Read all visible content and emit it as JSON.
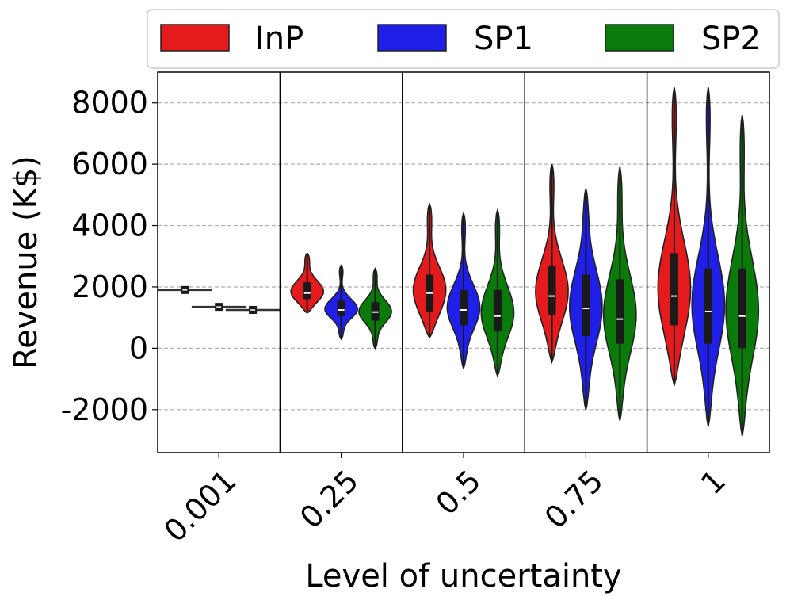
{
  "chart_data": {
    "type": "violin",
    "xlabel": "Level of uncertainty",
    "ylabel": "Revenue (K$)",
    "ylim": [
      -3400,
      9000
    ],
    "yticks": [
      -2000,
      0,
      2000,
      4000,
      6000,
      8000
    ],
    "ytick_labels": [
      "-2000",
      "0",
      "2000",
      "4000",
      "6000",
      "8000"
    ],
    "grid": "horizontal-dashed",
    "legend_position": "top",
    "categories": [
      "0.001",
      "0.25",
      "0.5",
      "0.75",
      "1"
    ],
    "series": [
      {
        "name": "InP",
        "color": "#e41a1c",
        "stats": [
          {
            "min": 1840,
            "q1": 1870,
            "median": 1900,
            "q3": 1930,
            "max": 1960
          },
          {
            "min": 1150,
            "q1": 1600,
            "median": 1800,
            "q3": 2150,
            "max": 3100
          },
          {
            "min": 350,
            "q1": 1200,
            "median": 1800,
            "q3": 2400,
            "max": 4700
          },
          {
            "min": -450,
            "q1": 1100,
            "median": 1700,
            "q3": 2700,
            "max": 6000
          },
          {
            "min": -1200,
            "q1": 750,
            "median": 1700,
            "q3": 3100,
            "max": 8500
          }
        ]
      },
      {
        "name": "SP1",
        "color": "#1f1fe8",
        "stats": [
          {
            "min": 1290,
            "q1": 1320,
            "median": 1350,
            "q3": 1380,
            "max": 1410
          },
          {
            "min": 300,
            "q1": 1050,
            "median": 1250,
            "q3": 1550,
            "max": 2700
          },
          {
            "min": -650,
            "q1": 750,
            "median": 1250,
            "q3": 1900,
            "max": 4400
          },
          {
            "min": -2000,
            "q1": 400,
            "median": 1300,
            "q3": 2400,
            "max": 5200
          },
          {
            "min": -2550,
            "q1": 150,
            "median": 1200,
            "q3": 2600,
            "max": 8500
          }
        ]
      },
      {
        "name": "SP2",
        "color": "#0a7a0a",
        "stats": [
          {
            "min": 1190,
            "q1": 1220,
            "median": 1250,
            "q3": 1280,
            "max": 1310
          },
          {
            "min": 0,
            "q1": 900,
            "median": 1180,
            "q3": 1500,
            "max": 2600
          },
          {
            "min": -900,
            "q1": 550,
            "median": 1050,
            "q3": 1900,
            "max": 4500
          },
          {
            "min": -2350,
            "q1": 150,
            "median": 950,
            "q3": 2250,
            "max": 5900
          },
          {
            "min": -2850,
            "q1": 0,
            "median": 1050,
            "q3": 2600,
            "max": 7600
          }
        ]
      }
    ]
  }
}
